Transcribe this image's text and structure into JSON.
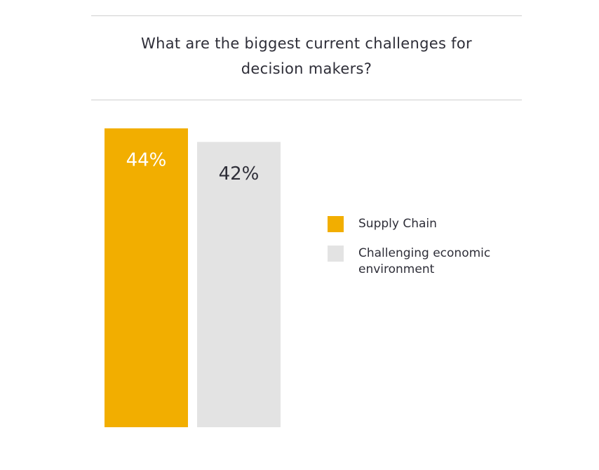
{
  "chart_data": {
    "type": "bar",
    "title": "What are the biggest current challenges for decision makers?",
    "series": [
      {
        "name": "Supply Chain",
        "color": "#f2ae00",
        "label_color": "#ffffff",
        "values": [
          44
        ],
        "value_labels": [
          "44%"
        ]
      },
      {
        "name": "Challenging economic environment",
        "color": "#e3e3e3",
        "label_color": "#2e2e38",
        "values": [
          42
        ],
        "value_labels": [
          "42%"
        ]
      }
    ],
    "legend": "right"
  }
}
